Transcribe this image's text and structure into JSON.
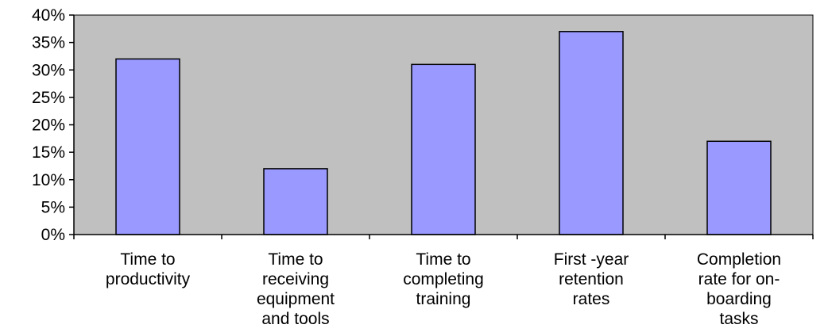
{
  "chart_data": {
    "type": "bar",
    "title": "",
    "xlabel": "",
    "ylabel": "",
    "categories": [
      [
        "Time to",
        "productivity"
      ],
      [
        "Time to",
        "receiving",
        "equipment",
        "and tools"
      ],
      [
        "Time to",
        "completing",
        "training"
      ],
      [
        "First -year",
        "retention",
        "rates"
      ],
      [
        "Completion",
        "rate for on-",
        "boarding",
        "tasks"
      ]
    ],
    "values": [
      0.32,
      0.12,
      0.31,
      0.37,
      0.17
    ],
    "ylim": [
      0,
      0.4
    ],
    "yticks": [
      "0%",
      "5%",
      "10%",
      "15%",
      "20%",
      "25%",
      "30%",
      "35%",
      "40%"
    ],
    "grid": false,
    "legend": "none",
    "colors": {
      "plot_background": "#c0c0c0",
      "bar_fill": "#9999ff",
      "bar_stroke": "#000000",
      "axis": "#000000"
    }
  }
}
